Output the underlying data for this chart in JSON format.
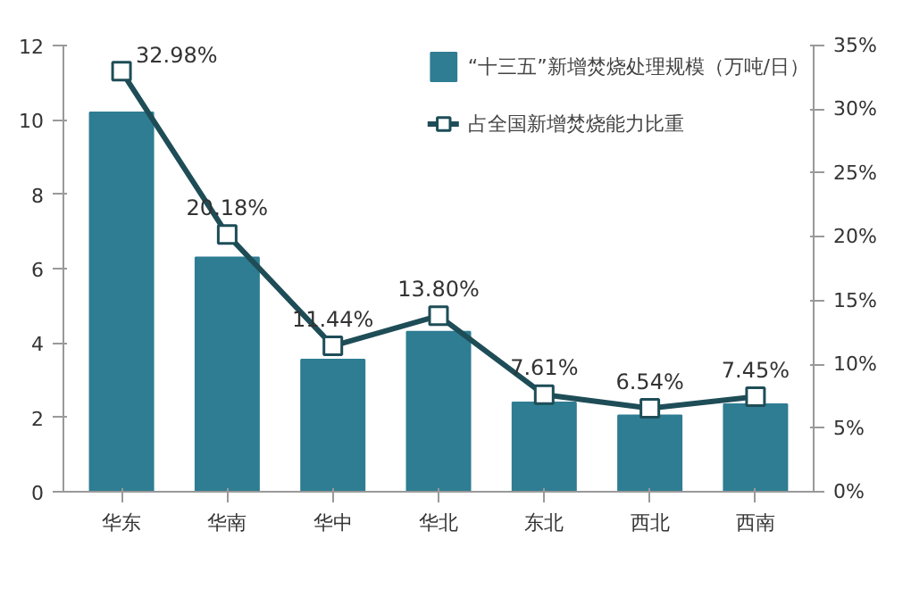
{
  "chart_data": {
    "type": "bar",
    "categories": [
      "华东",
      "华南",
      "华中",
      "华北",
      "东北",
      "西北",
      "西南"
    ],
    "series": [
      {
        "name": "“十三五”新增焚烧处理规模（万吨/日）",
        "color": "#2e7d92",
        "values": [
          10.2,
          6.3,
          3.55,
          4.3,
          2.4,
          2.05,
          2.35
        ]
      },
      {
        "name": "占全国新增焚烧能力比重",
        "type": "line",
        "axis": "y2",
        "color": "#1e4d57",
        "marker": "square",
        "values": [
          32.98,
          20.18,
          11.44,
          13.8,
          7.61,
          6.54,
          7.45
        ],
        "value_labels": [
          "32.98%",
          "20.18%",
          "11.44%",
          "13.80%",
          "7.61%",
          "6.54%",
          "7.45%"
        ]
      }
    ],
    "ylim": [
      0,
      12
    ],
    "yticks": [
      0,
      2,
      4,
      6,
      8,
      10,
      12
    ],
    "y2lim": [
      0,
      35
    ],
    "y2ticks": [
      {
        "value": 0,
        "label": "0%"
      },
      {
        "value": 5,
        "label": "5%"
      },
      {
        "value": 10,
        "label": "10%"
      },
      {
        "value": 15,
        "label": "15%"
      },
      {
        "value": 20,
        "label": "20%"
      },
      {
        "value": 25,
        "label": "25%"
      },
      {
        "value": 30,
        "label": "30%"
      },
      {
        "value": 35,
        "label": "35%"
      }
    ],
    "grid": false,
    "legend": "top right"
  }
}
